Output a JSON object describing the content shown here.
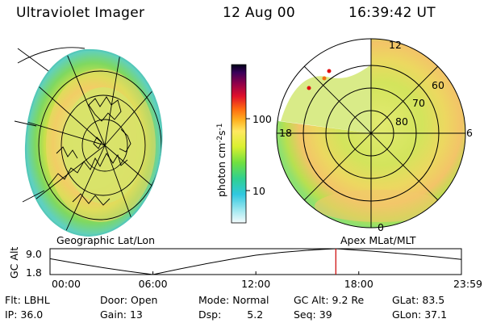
{
  "header": {
    "instrument": "Ultraviolet Imager",
    "date": "12 Aug 00",
    "time": "16:39:42 UT"
  },
  "panels": {
    "left_caption": "Geographic Lat/Lon",
    "right_caption": "Apex MLat/MLT"
  },
  "colorbar": {
    "unit_text": "photon cm",
    "unit_exp1": "-2",
    "unit_s": "s",
    "unit_exp2": "-1",
    "tick_100": "100",
    "tick_10": "10",
    "scale": "log"
  },
  "polar_labels": {
    "mlt_12": "12",
    "mlt_18": "18",
    "mlt_6": "6",
    "mlt_0": "0",
    "lat_60": "60",
    "lat_70": "70",
    "lat_80": "80"
  },
  "timeline": {
    "ylabel": "GC Alt",
    "ytick_hi": "9.0",
    "ytick_lo": "1.8",
    "xticks": [
      "00:00",
      "06:00",
      "12:00",
      "18:00",
      "23:59"
    ],
    "marker_time": "16:39:42"
  },
  "chart_data": [
    {
      "type": "line",
      "title": "",
      "ylabel": "GC Alt",
      "ylim": [
        1.8,
        9.0
      ],
      "x": [
        "00:00",
        "06:00",
        "12:00",
        "16:40",
        "23:59"
      ],
      "y": [
        6.2,
        1.8,
        7.2,
        9.2,
        6.0
      ],
      "marker_x": "16:39:42"
    }
  ],
  "info": {
    "filter_label": "Flt:",
    "filter_value": "LBHL",
    "ip_label": "IP:",
    "ip_value": "36.0",
    "door_label": "Door:",
    "door_value": "Open",
    "gain_label": "Gain:",
    "gain_value": "13",
    "mode_label": "Mode:",
    "mode_value": "Normal",
    "dsp_label": "Dsp:",
    "dsp_value": "5.2",
    "gcalt_label": "GC Alt:",
    "gcalt_value": "9.2 Re",
    "seq_label": "Seq:",
    "seq_value": "39",
    "glat_label": "GLat:",
    "glat_value": "83.5",
    "glon_label": "GLon:",
    "glon_value": "37.1"
  },
  "colors": {
    "track": "#000000",
    "marker": "#cc0000"
  }
}
